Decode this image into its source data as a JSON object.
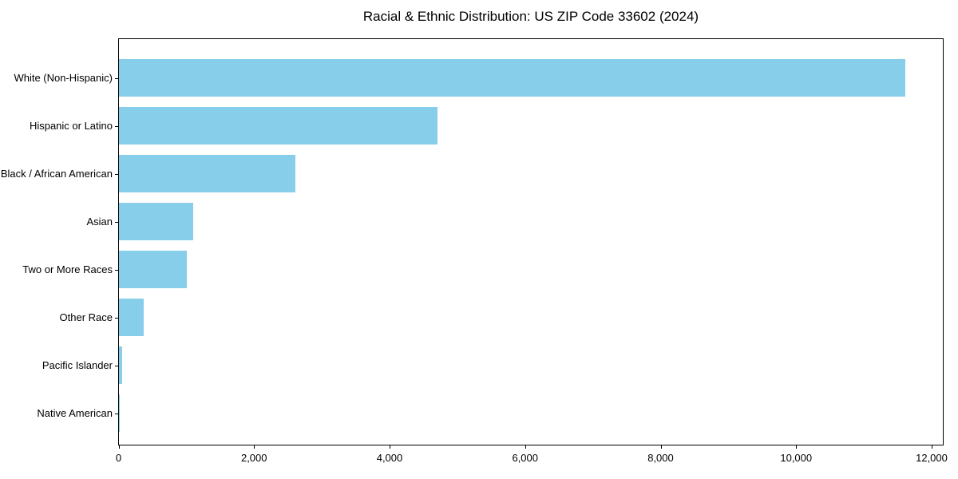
{
  "chart_data": {
    "type": "bar",
    "orientation": "horizontal",
    "title": "Racial & Ethnic Distribution: US ZIP Code 33602 (2024)",
    "categories": [
      "White (Non-Hispanic)",
      "Hispanic or Latino",
      "Black / African American",
      "Asian",
      "Two or More Races",
      "Other Race",
      "Pacific Islander",
      "Native American"
    ],
    "values": [
      11600,
      4700,
      2600,
      1100,
      1000,
      360,
      50,
      10
    ],
    "bar_color": "#87CEEB",
    "xlabel": "",
    "ylabel": "",
    "xlim": [
      0,
      12180
    ],
    "x_tick_values": [
      0,
      2000,
      4000,
      6000,
      8000,
      10000,
      12000
    ],
    "x_tick_labels": [
      "0",
      "2,000",
      "4,000",
      "6,000",
      "8,000",
      "10,000",
      "12,000"
    ],
    "grid": false,
    "legend": null,
    "text_color": "#000000",
    "axis_color": "#000000",
    "background_color": "#ffffff"
  }
}
